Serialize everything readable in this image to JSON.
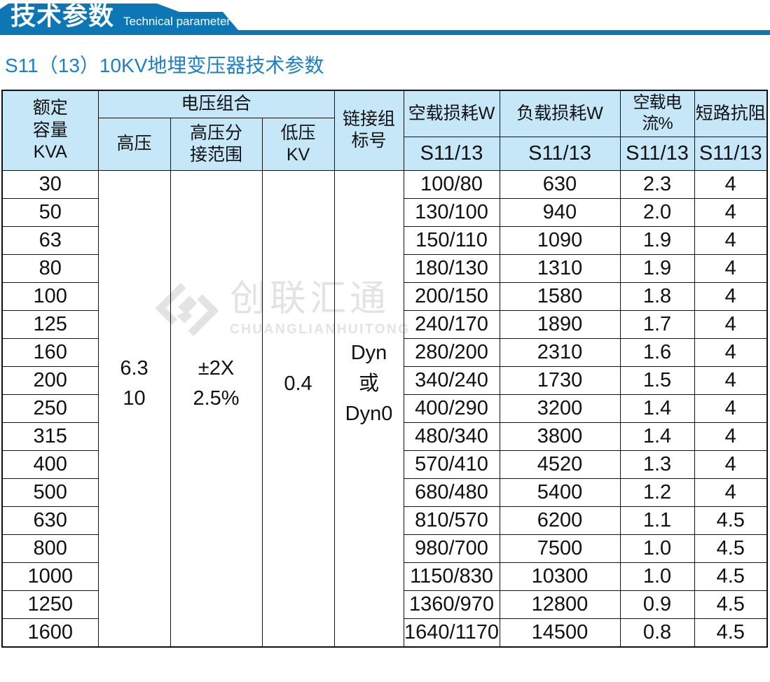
{
  "banner": {
    "title": "技术参数",
    "subtitle_en": "Technical parameter"
  },
  "page_title": "S11（13）10KV地埋变压器技术参数",
  "colors": {
    "banner_blue": "#0d76b5",
    "subtitle_blue": "#1c80c2",
    "table_header_bg": "#c5e7f8",
    "table_border": "#111111",
    "watermark_gray": "#e3e3e3"
  },
  "watermark": {
    "logo_icon": "diamond-logo-icon",
    "cn": "创联汇通",
    "en": "CHUANGLIANHUITONG"
  },
  "table": {
    "header": {
      "capacity": "额定\n容量\nKVA",
      "voltage_combo": "电压组合",
      "hv": "高压",
      "hv_tap": "高压分\n接范围",
      "lv": "低压\nKV",
      "link_group": "链接组\n标号",
      "no_load_loss": "空载损耗W",
      "load_loss": "负载损耗W",
      "no_load_current": "空载电流%",
      "impedance": "短路抗阻",
      "model": "S11/13"
    },
    "merged": {
      "hv_value": "6.3\n10",
      "tap_value": "±2X\n2.5%",
      "lv_value": "0.4",
      "link_value": "Dyn\n或\nDyn0"
    },
    "rows": [
      {
        "capacity": "30",
        "no_load_loss": "100/80",
        "load_loss": "630",
        "no_load_current": "2.3",
        "impedance": "4"
      },
      {
        "capacity": "50",
        "no_load_loss": "130/100",
        "load_loss": "940",
        "no_load_current": "2.0",
        "impedance": "4"
      },
      {
        "capacity": "63",
        "no_load_loss": "150/110",
        "load_loss": "1090",
        "no_load_current": "1.9",
        "impedance": "4"
      },
      {
        "capacity": "80",
        "no_load_loss": "180/130",
        "load_loss": "1310",
        "no_load_current": "1.9",
        "impedance": "4"
      },
      {
        "capacity": "100",
        "no_load_loss": "200/150",
        "load_loss": "1580",
        "no_load_current": "1.8",
        "impedance": "4"
      },
      {
        "capacity": "125",
        "no_load_loss": "240/170",
        "load_loss": "1890",
        "no_load_current": "1.7",
        "impedance": "4"
      },
      {
        "capacity": "160",
        "no_load_loss": "280/200",
        "load_loss": "2310",
        "no_load_current": "1.6",
        "impedance": "4"
      },
      {
        "capacity": "200",
        "no_load_loss": "340/240",
        "load_loss": "1730",
        "no_load_current": "1.5",
        "impedance": "4"
      },
      {
        "capacity": "250",
        "no_load_loss": "400/290",
        "load_loss": "3200",
        "no_load_current": "1.4",
        "impedance": "4"
      },
      {
        "capacity": "315",
        "no_load_loss": "480/340",
        "load_loss": "3800",
        "no_load_current": "1.4",
        "impedance": "4"
      },
      {
        "capacity": "400",
        "no_load_loss": "570/410",
        "load_loss": "4520",
        "no_load_current": "1.3",
        "impedance": "4"
      },
      {
        "capacity": "500",
        "no_load_loss": "680/480",
        "load_loss": "5400",
        "no_load_current": "1.2",
        "impedance": "4"
      },
      {
        "capacity": "630",
        "no_load_loss": "810/570",
        "load_loss": "6200",
        "no_load_current": "1.1",
        "impedance": "4.5"
      },
      {
        "capacity": "800",
        "no_load_loss": "980/700",
        "load_loss": "7500",
        "no_load_current": "1.0",
        "impedance": "4.5"
      },
      {
        "capacity": "1000",
        "no_load_loss": "1150/830",
        "load_loss": "10300",
        "no_load_current": "1.0",
        "impedance": "4.5"
      },
      {
        "capacity": "1250",
        "no_load_loss": "1360/970",
        "load_loss": "12800",
        "no_load_current": "0.9",
        "impedance": "4.5"
      },
      {
        "capacity": "1600",
        "no_load_loss": "1640/1170",
        "load_loss": "14500",
        "no_load_current": "0.8",
        "impedance": "4.5"
      }
    ]
  }
}
